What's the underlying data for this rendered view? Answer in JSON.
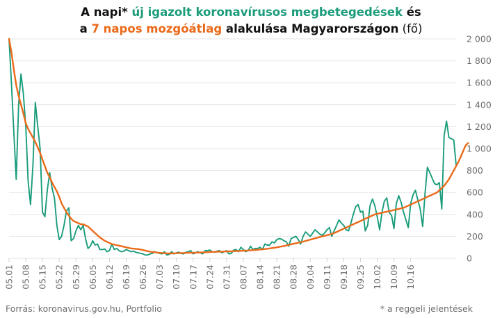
{
  "title": {
    "line1_prefix": "A napi* ",
    "line1_green": "új igazolt koronavírusos megbetegedések",
    "line1_suffix": " és",
    "line2_prefix": "a ",
    "line2_orange": "7 napos mozgóátlag",
    "line2_mid": " alakulása Magyarországon",
    "line2_unit": " (fő)"
  },
  "footer": {
    "source": "Forrás: koronavirus.gov.hu, Portfolio",
    "note": "* a reggeli jelentések"
  },
  "colors": {
    "daily": "#1a9c7b",
    "avg": "#ea6a1a",
    "grid": "#e6e6e6"
  },
  "chart_data": {
    "type": "line",
    "start_date": "05.01",
    "x_tick_labels": [
      "05.01",
      "05.08",
      "05.15",
      "05.22",
      "05.29",
      "06.05",
      "06.12",
      "06.19",
      "06.26",
      "07.03",
      "07.10",
      "07.17",
      "07.24",
      "07.31",
      "08.07",
      "08.14",
      "08.21",
      "08.28",
      "09.04",
      "09.11",
      "09.18",
      "09.25",
      "10.02",
      "10.09",
      "10.16"
    ],
    "y_ticks": [
      0,
      200,
      400,
      600,
      800,
      1000,
      1200,
      1400,
      1600,
      1800,
      2000
    ],
    "y_tick_labels": [
      "0",
      "200",
      "400",
      "600",
      "800",
      "1 000",
      "1 200",
      "1 400",
      "1 600",
      "1 800",
      "2 000"
    ],
    "ylim": [
      0,
      2000
    ],
    "grid": "horizontal",
    "series": [
      {
        "key": "daily",
        "values": [
          2000,
          1600,
          1150,
          720,
          1400,
          1680,
          1500,
          1200,
          700,
          490,
          850,
          1420,
          1200,
          1000,
          420,
          380,
          620,
          780,
          640,
          550,
          300,
          170,
          200,
          300,
          430,
          460,
          160,
          180,
          250,
          300,
          260,
          300,
          180,
          90,
          110,
          160,
          120,
          130,
          80,
          80,
          85,
          60,
          70,
          130,
          80,
          90,
          70,
          60,
          65,
          80,
          70,
          60,
          65,
          55,
          50,
          45,
          40,
          30,
          30,
          40,
          45,
          60,
          50,
          45,
          40,
          60,
          30,
          35,
          60,
          40,
          50,
          55,
          45,
          40,
          55,
          60,
          70,
          40,
          50,
          60,
          50,
          40,
          70,
          70,
          75,
          60,
          55,
          65,
          70,
          50,
          60,
          70,
          40,
          45,
          75,
          80,
          60,
          100,
          80,
          60,
          70,
          110,
          80,
          90,
          90,
          100,
          80,
          130,
          120,
          120,
          150,
          140,
          170,
          180,
          175,
          160,
          150,
          110,
          180,
          190,
          200,
          170,
          130,
          200,
          240,
          220,
          200,
          230,
          260,
          240,
          220,
          210,
          230,
          260,
          280,
          200,
          250,
          300,
          350,
          320,
          300,
          260,
          250,
          320,
          400,
          470,
          490,
          420,
          430,
          250,
          300,
          480,
          540,
          480,
          380,
          260,
          420,
          520,
          550,
          420,
          390,
          270,
          500,
          570,
          510,
          420,
          350,
          280,
          500,
          580,
          620,
          530,
          450,
          290,
          590,
          830,
          780,
          730,
          680,
          670,
          690,
          450,
          1120,
          1250,
          1100,
          1090,
          1080,
          850
        ],
        "fill_ascii": "unused"
      },
      {
        "key": "avg",
        "values": [
          2000,
          1880,
          1720,
          1580,
          1480,
          1400,
          1320,
          1230,
          1180,
          1140,
          1100,
          1060,
          1010,
          960,
          900,
          840,
          780,
          740,
          690,
          650,
          610,
          560,
          500,
          460,
          420,
          390,
          360,
          340,
          330,
          320,
          310,
          310,
          300,
          290,
          270,
          250,
          230,
          210,
          190,
          175,
          160,
          150,
          140,
          130,
          125,
          120,
          115,
          110,
          105,
          100,
          95,
          90,
          88,
          86,
          84,
          80,
          75,
          70,
          65,
          60,
          57,
          55,
          52,
          50,
          48,
          46,
          45,
          44,
          44,
          45,
          46,
          47,
          48,
          48,
          49,
          50,
          50,
          50,
          51,
          52,
          53,
          54,
          55,
          56,
          57,
          58,
          59,
          60,
          61,
          61,
          62,
          63,
          63,
          64,
          65,
          66,
          67,
          68,
          69,
          70,
          71,
          72,
          74,
          76,
          78,
          80,
          82,
          84,
          87,
          90,
          93,
          96,
          100,
          104,
          108,
          112,
          117,
          122,
          127,
          132,
          137,
          142,
          147,
          152,
          158,
          164,
          170,
          176,
          182,
          188,
          194,
          200,
          205,
          210,
          216,
          222,
          230,
          240,
          250,
          260,
          270,
          280,
          290,
          300,
          310,
          320,
          330,
          340,
          350,
          360,
          370,
          380,
          390,
          400,
          405,
          410,
          415,
          420,
          425,
          430,
          435,
          440,
          445,
          450,
          455,
          460,
          470,
          480,
          490,
          500,
          510,
          520,
          530,
          540,
          550,
          560,
          570,
          580,
          590,
          600,
          620,
          640,
          660,
          690,
          720,
          760,
          800,
          840,
          880,
          930,
          980,
          1030,
          1050
        ]
      }
    ]
  }
}
